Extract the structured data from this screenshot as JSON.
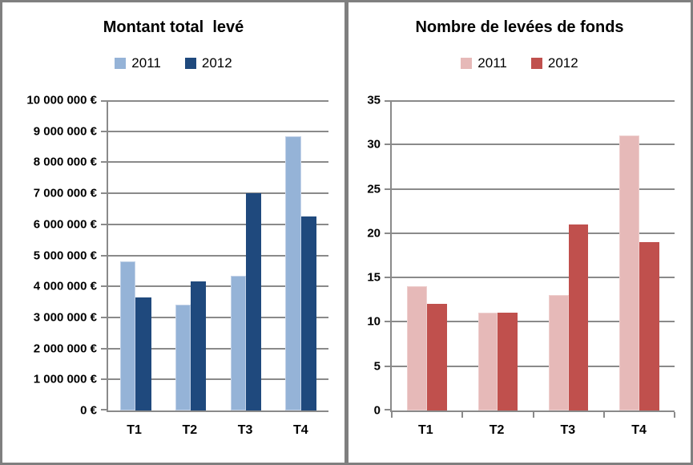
{
  "colors": {
    "frame_border": "#7f7f7f",
    "divider": "#7f7f7f",
    "gridline": "#8a8a8a",
    "axis": "#8a8a8a",
    "background": "#ffffff",
    "text": "#000000"
  },
  "chart_data": [
    {
      "type": "bar",
      "title": "Montant total  levé",
      "xlabel": "",
      "ylabel": "",
      "categories": [
        "T1",
        "T2",
        "T3",
        "T4"
      ],
      "series": [
        {
          "name": "2011",
          "color": "#95b3d7",
          "border": "#c3d2e8",
          "values": [
            4800000,
            3400000,
            4350000,
            8850000
          ]
        },
        {
          "name": "2012",
          "color": "#1f497d",
          "border": "#1f497d",
          "values": [
            3650000,
            4150000,
            7000000,
            6250000
          ]
        }
      ],
      "ylim": [
        0,
        10000000
      ],
      "ytick_step": 1000000,
      "ytick_format": "euro_spaced",
      "grid": true,
      "x_ticks": false,
      "legend_position": "top"
    },
    {
      "type": "bar",
      "title": "Nombre de levées de fonds",
      "xlabel": "",
      "ylabel": "",
      "categories": [
        "T1",
        "T2",
        "T3",
        "T4"
      ],
      "series": [
        {
          "name": "2011",
          "color": "#e6b9b8",
          "border": "#eecfce",
          "values": [
            14,
            11,
            13,
            31
          ]
        },
        {
          "name": "2012",
          "color": "#c0504d",
          "border": "#c0504d",
          "values": [
            12,
            11,
            21,
            19
          ]
        }
      ],
      "ylim": [
        0,
        35
      ],
      "ytick_step": 5,
      "ytick_format": "plain",
      "grid": true,
      "x_ticks": true,
      "legend_position": "top"
    }
  ]
}
